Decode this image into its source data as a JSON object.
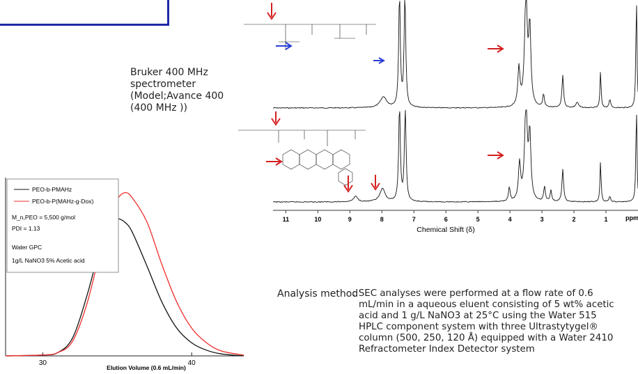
{
  "spectrometer_note": [
    "Bruker 400 MHz",
    "spectrometer",
    "(Model;Avance 400",
    "(400 MHz ))"
  ],
  "analysis": {
    "label": "Analysis method",
    "colon": ":",
    "lines": [
      "SEC analyses were performed at a flow rate of 0.6",
      "mL/min in a aqueous eluent consisting of 5 wt% acetic",
      "acid and 1 g/L NaNO3 at 25°C using the Water 515",
      "HPLC component system with three Ultrastytygel®",
      "column (500, 250, 120 Å) equipped with a Water 2410",
      "Refractometer Index Detector system"
    ]
  },
  "colors": {
    "frame": "#1f2aa8",
    "red_arrow": "#d42020",
    "blue_arrow": "#2a3fd6",
    "black_trace": "#111111",
    "red_trace": "#ee2b2b"
  },
  "chart_data": [
    {
      "type": "line",
      "title": "",
      "xlabel": "Elution Volume (0.6 mL/min)",
      "ylabel": "",
      "xlim": [
        27.5,
        43.5
      ],
      "ylim": [
        0,
        1.05
      ],
      "xticks": [
        30,
        40
      ],
      "legend_position": "top-left",
      "series": [
        {
          "name": "PEO-b-PMAHz",
          "color": "#111111",
          "x": [
            27.5,
            30,
            31,
            32,
            33,
            34,
            34.5,
            35,
            35.5,
            36,
            37,
            38,
            39,
            40,
            41,
            42,
            43.5
          ],
          "y": [
            0.0,
            0.005,
            0.02,
            0.11,
            0.38,
            0.72,
            0.81,
            0.84,
            0.82,
            0.76,
            0.55,
            0.33,
            0.17,
            0.08,
            0.035,
            0.012,
            0.0
          ]
        },
        {
          "name": "PEO-b-P(MAHz-g-Dox)",
          "color": "#ee2b2b",
          "x": [
            27.5,
            30,
            31,
            32,
            33,
            34,
            34.5,
            35,
            35.5,
            36,
            37,
            38,
            39,
            40,
            41,
            42,
            43.5
          ],
          "y": [
            0.0,
            0.005,
            0.02,
            0.09,
            0.33,
            0.7,
            0.86,
            0.96,
            1.0,
            0.97,
            0.82,
            0.56,
            0.33,
            0.17,
            0.08,
            0.03,
            0.005
          ]
        }
      ],
      "annotations": [
        "M_n,PEO = 5,500 g/mol",
        "PDI = 1.13",
        "Water GPC",
        "1g/L NaNO3 5% Acetic acid"
      ]
    },
    {
      "type": "line",
      "title": "",
      "xlabel": "Chemical Shift (δ)",
      "x_unit_label": "ppm",
      "xlim": [
        11.4,
        0.0
      ],
      "x_reversed": true,
      "xticks": [
        11,
        10,
        9,
        8,
        7,
        6,
        5,
        4,
        3,
        2,
        1
      ],
      "series": [
        {
          "name": "",
          "note": "upper spectrum",
          "peaks": [
            {
              "ppm": 7.95,
              "h": 0.1,
              "w": 0.12
            },
            {
              "ppm": 7.45,
              "h": 1.05,
              "w": 0.03
            },
            {
              "ppm": 7.28,
              "h": 1.05,
              "w": 0.03
            },
            {
              "ppm": 3.72,
              "h": 0.35,
              "w": 0.04
            },
            {
              "ppm": 3.5,
              "h": 1.05,
              "w": 0.05
            },
            {
              "ppm": 3.38,
              "h": 0.7,
              "w": 0.04
            },
            {
              "ppm": 2.95,
              "h": 0.12,
              "w": 0.03
            },
            {
              "ppm": 2.35,
              "h": 0.3,
              "w": 0.03
            },
            {
              "ppm": 1.9,
              "h": 0.05,
              "w": 0.05
            },
            {
              "ppm": 1.17,
              "h": 0.35,
              "w": 0.02
            },
            {
              "ppm": 0.88,
              "h": 0.08,
              "w": 0.03
            },
            {
              "ppm": 0.05,
              "h": 1.05,
              "w": 0.02
            }
          ]
        },
        {
          "name": "",
          "note": "lower spectrum",
          "peaks": [
            {
              "ppm": 8.82,
              "h": 0.06,
              "w": 0.08
            },
            {
              "ppm": 7.98,
              "h": 0.14,
              "w": 0.1
            },
            {
              "ppm": 7.45,
              "h": 1.05,
              "w": 0.03
            },
            {
              "ppm": 7.27,
              "h": 1.05,
              "w": 0.03
            },
            {
              "ppm": 4.02,
              "h": 0.15,
              "w": 0.03
            },
            {
              "ppm": 3.7,
              "h": 0.4,
              "w": 0.04
            },
            {
              "ppm": 3.5,
              "h": 1.05,
              "w": 0.05
            },
            {
              "ppm": 3.38,
              "h": 0.7,
              "w": 0.04
            },
            {
              "ppm": 2.92,
              "h": 0.16,
              "w": 0.03
            },
            {
              "ppm": 2.72,
              "h": 0.12,
              "w": 0.03
            },
            {
              "ppm": 2.35,
              "h": 0.35,
              "w": 0.03
            },
            {
              "ppm": 1.17,
              "h": 0.45,
              "w": 0.02
            },
            {
              "ppm": 0.88,
              "h": 0.06,
              "w": 0.03
            },
            {
              "ppm": 0.05,
              "h": 1.05,
              "w": 0.02
            }
          ]
        }
      ]
    }
  ]
}
